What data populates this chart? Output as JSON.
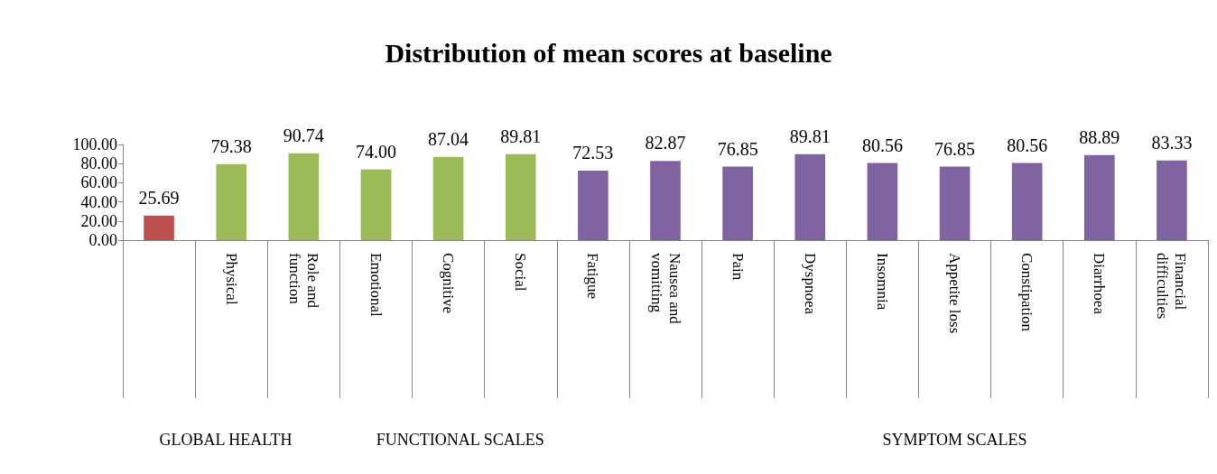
{
  "chart_data": {
    "type": "bar",
    "title": "Distribution of mean scores at baseline",
    "categories": [
      null,
      "Physical",
      "Role and function",
      "Emotional",
      "Cognitive",
      "Social",
      "Fatigue",
      "Nausea and vomitting",
      "Pain",
      "Dyspnoea",
      "Insomnia",
      "Appetite loss",
      "Constipation",
      "Diarrhoea",
      "Financial difficulties"
    ],
    "values": [
      25.69,
      79.38,
      90.74,
      74.0,
      87.04,
      89.81,
      72.53,
      82.87,
      76.85,
      89.81,
      80.56,
      76.85,
      80.56,
      88.89,
      83.33
    ],
    "value_labels": [
      "25.69",
      "79.38",
      "90.74",
      "74.00",
      "87.04",
      "89.81",
      "72.53",
      "82.87",
      "76.85",
      "89.81",
      "80.56",
      "76.85",
      "80.56",
      "88.89",
      "83.33"
    ],
    "colors": [
      "#c0504d",
      "#9bbb59",
      "#9bbb59",
      "#9bbb59",
      "#9bbb59",
      "#9bbb59",
      "#8064a2",
      "#8064a2",
      "#8064a2",
      "#8064a2",
      "#8064a2",
      "#8064a2",
      "#8064a2",
      "#8064a2",
      "#8064a2"
    ],
    "ylim": [
      0,
      100
    ],
    "yticks": [
      {
        "value": 0,
        "label": "0.00"
      },
      {
        "value": 20,
        "label": "20.00"
      },
      {
        "value": 40,
        "label": "40.00"
      },
      {
        "value": 60,
        "label": "60.00"
      },
      {
        "value": 80,
        "label": "80.00"
      },
      {
        "value": 100,
        "label": "100.00"
      }
    ],
    "annotations": [
      "GLOBAL HEALTH",
      "FUNCTIONAL SCALES",
      "SYMPTOM SCALES"
    ]
  }
}
